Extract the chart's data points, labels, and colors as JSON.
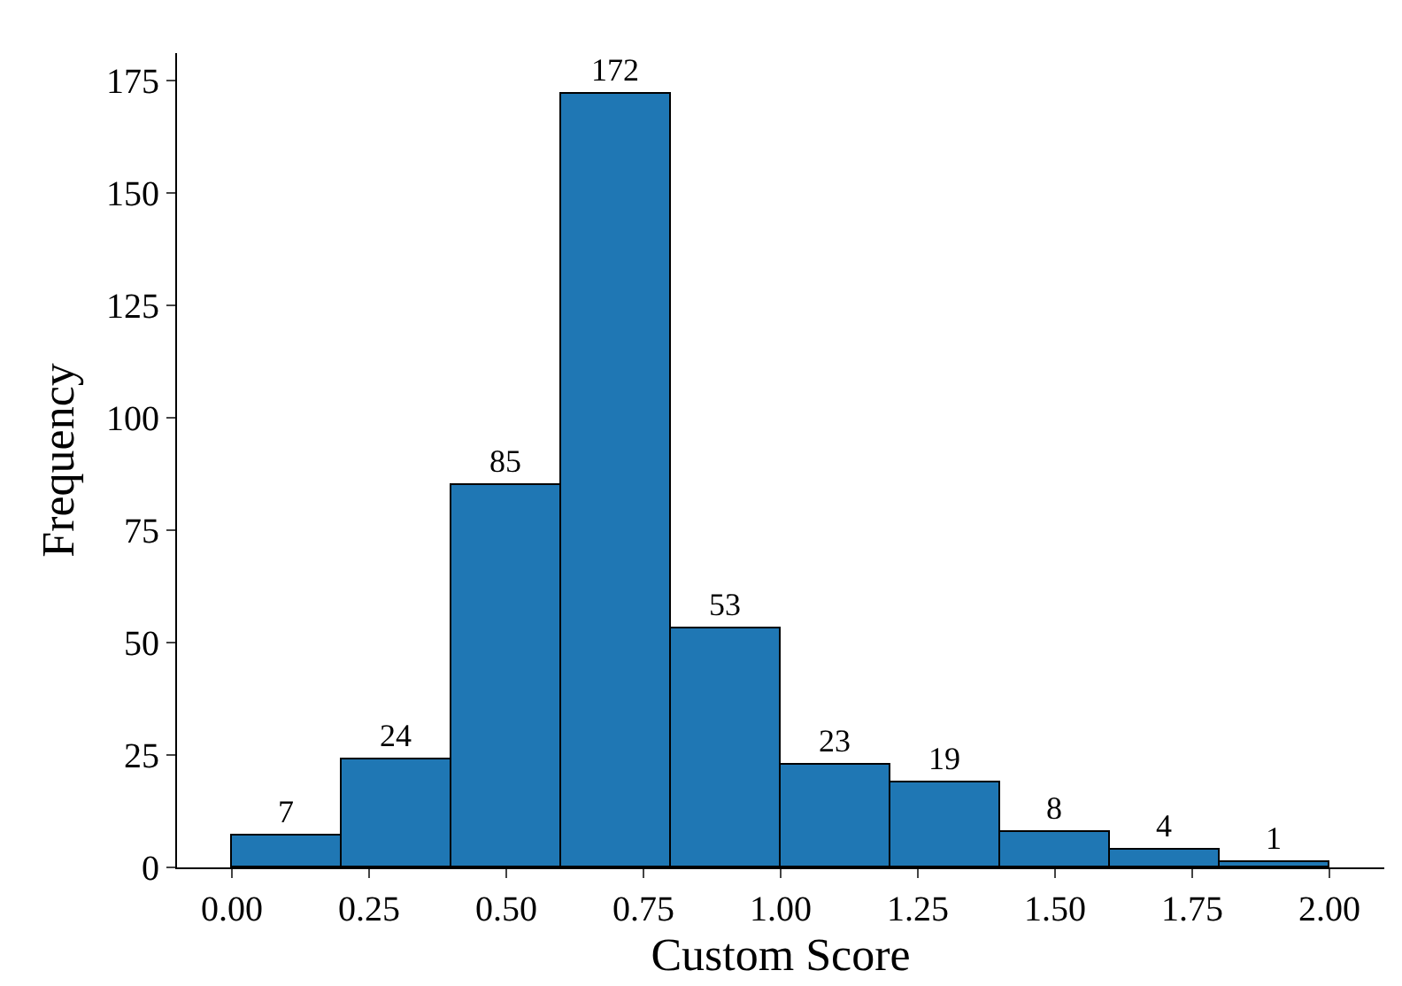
{
  "chart_data": {
    "type": "histogram",
    "xlabel": "Custom Score",
    "ylabel": "Frequency",
    "bins": [
      0.0,
      0.2,
      0.4,
      0.6,
      0.8,
      1.0,
      1.2,
      1.4,
      1.6,
      1.8,
      2.0
    ],
    "values": [
      7,
      24,
      85,
      172,
      53,
      23,
      19,
      8,
      4,
      1
    ],
    "color": "#1f77b4",
    "data_labels": true,
    "xlim": [
      -0.1,
      2.1
    ],
    "ylim": [
      0,
      181
    ],
    "xticks": [
      {
        "value": 0,
        "label": "0.00"
      },
      {
        "value": 0.25,
        "label": "0.25"
      },
      {
        "value": 0.5,
        "label": "0.50"
      },
      {
        "value": 0.75,
        "label": "0.75"
      },
      {
        "value": 1,
        "label": "1.00"
      },
      {
        "value": 1.25,
        "label": "1.25"
      },
      {
        "value": 1.5,
        "label": "1.50"
      },
      {
        "value": 1.75,
        "label": "1.75"
      },
      {
        "value": 2,
        "label": "2.00"
      }
    ],
    "yticks": [
      0,
      25,
      50,
      75,
      100,
      125,
      150,
      175
    ]
  }
}
